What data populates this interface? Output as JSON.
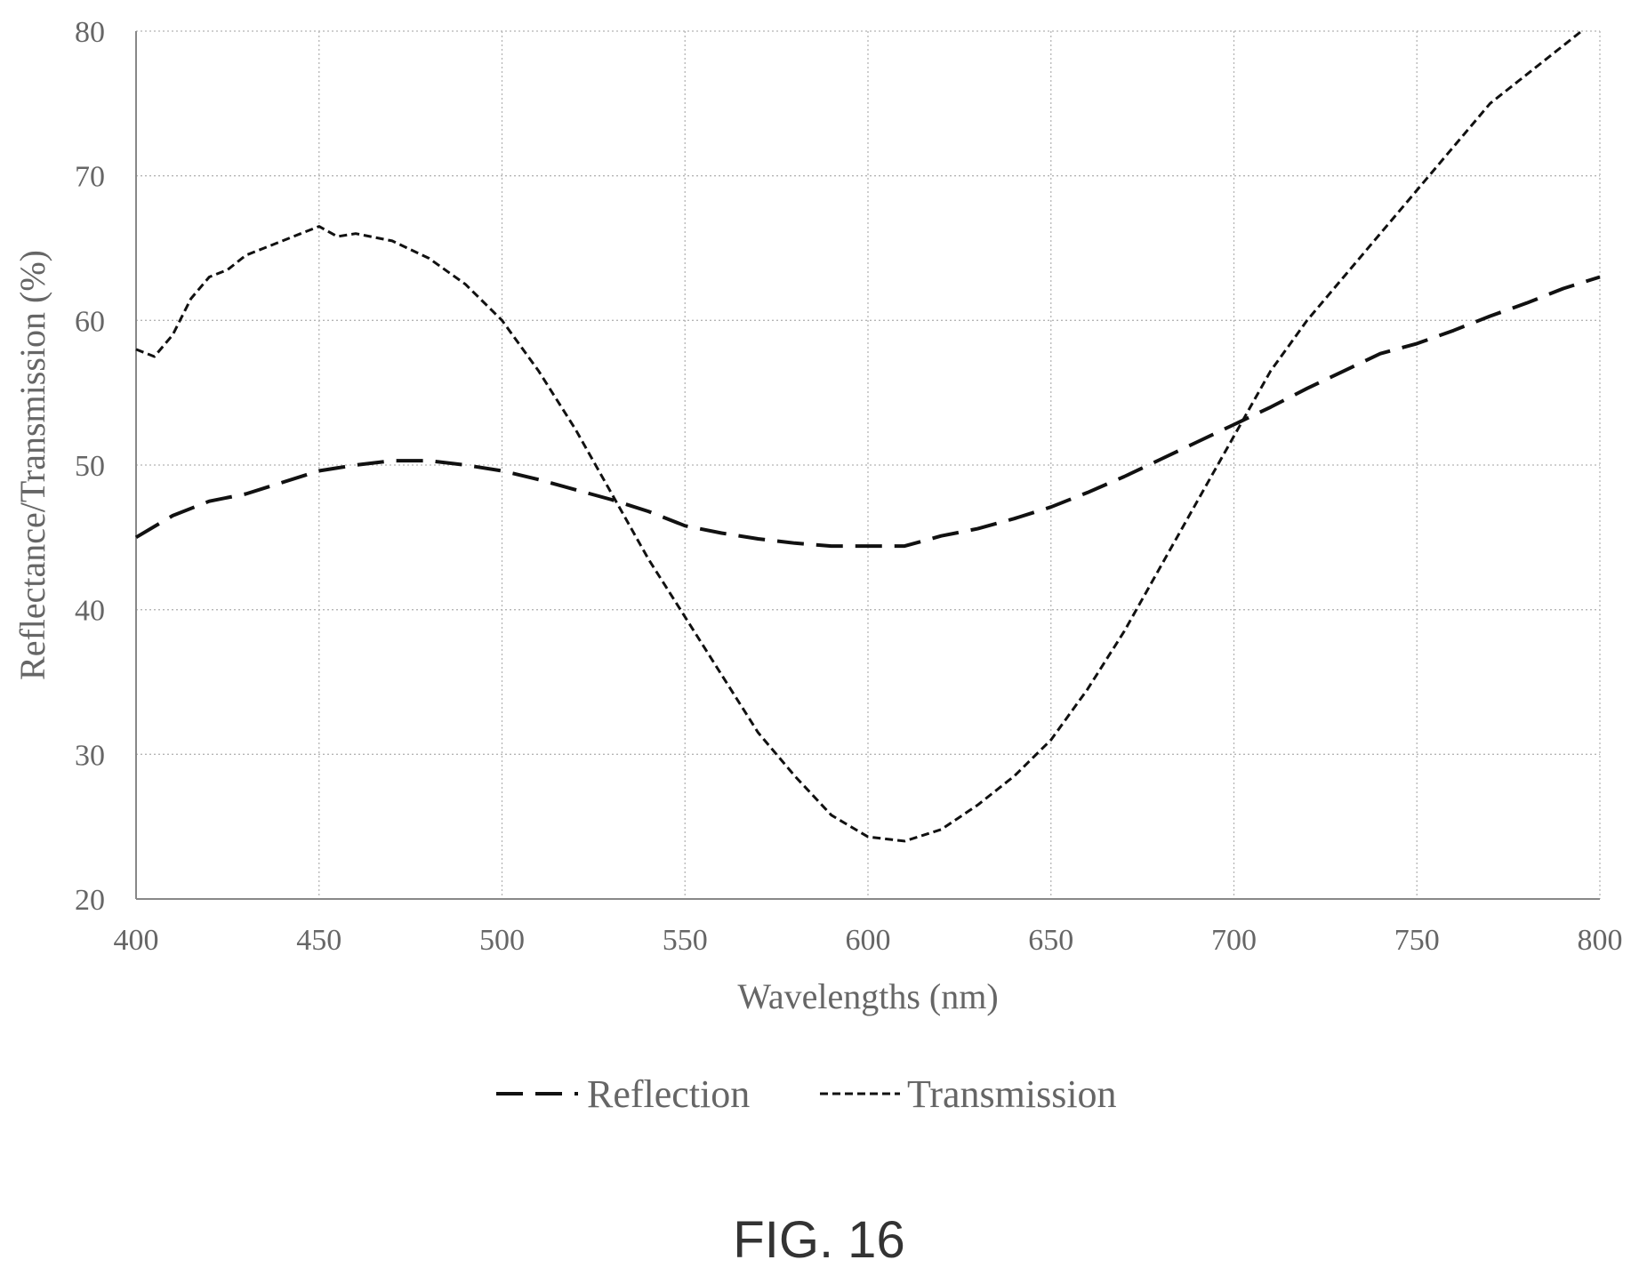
{
  "figure_label": "FIG. 16",
  "chart_data": {
    "type": "line",
    "title": "",
    "xlabel": "Wavelengths (nm)",
    "ylabel": "Reflectance/Transmission (%)",
    "xlim": [
      400,
      800
    ],
    "ylim": [
      20,
      80
    ],
    "x_ticks": [
      400,
      450,
      500,
      550,
      600,
      650,
      700,
      750,
      800
    ],
    "y_ticks": [
      20,
      30,
      40,
      50,
      60,
      70,
      80
    ],
    "grid": true,
    "legend_position": "bottom",
    "series": [
      {
        "name": "Reflection",
        "line_style": "long-dash",
        "color": "#111111",
        "x": [
          400,
          410,
          420,
          430,
          440,
          450,
          460,
          470,
          480,
          490,
          500,
          510,
          520,
          530,
          540,
          550,
          560,
          570,
          580,
          590,
          600,
          610,
          620,
          630,
          640,
          650,
          660,
          670,
          680,
          690,
          700,
          710,
          720,
          730,
          740,
          750,
          760,
          770,
          780,
          790,
          800
        ],
        "y": [
          45.0,
          46.5,
          47.5,
          48.0,
          48.8,
          49.6,
          50.0,
          50.3,
          50.3,
          50.0,
          49.6,
          49.0,
          48.3,
          47.6,
          46.8,
          45.8,
          45.3,
          44.9,
          44.6,
          44.4,
          44.4,
          44.4,
          45.1,
          45.6,
          46.3,
          47.1,
          48.1,
          49.2,
          50.4,
          51.6,
          52.8,
          54.0,
          55.3,
          56.5,
          57.7,
          58.4,
          59.3,
          60.3,
          61.2,
          62.2,
          63.0
        ]
      },
      {
        "name": "Transmission",
        "line_style": "short-dash",
        "color": "#111111",
        "x": [
          400,
          405,
          410,
          415,
          420,
          425,
          430,
          435,
          440,
          445,
          450,
          455,
          460,
          470,
          480,
          490,
          500,
          510,
          520,
          530,
          540,
          550,
          560,
          570,
          580,
          590,
          600,
          610,
          620,
          630,
          640,
          650,
          660,
          670,
          680,
          690,
          700,
          710,
          720,
          730,
          740,
          750,
          760,
          770,
          780,
          790,
          800
        ],
        "y": [
          58.0,
          57.5,
          59.0,
          61.5,
          63.0,
          63.5,
          64.5,
          65.0,
          65.5,
          66.0,
          66.5,
          65.8,
          66.0,
          65.5,
          64.3,
          62.5,
          60.0,
          56.5,
          52.5,
          48.0,
          43.5,
          39.5,
          35.5,
          31.5,
          28.5,
          25.8,
          24.3,
          24.0,
          24.8,
          26.5,
          28.5,
          31.0,
          34.5,
          38.5,
          43.0,
          47.5,
          52.0,
          56.5,
          60.0,
          63.0,
          66.0,
          69.0,
          72.0,
          75.0,
          77.0,
          79.0,
          81.0
        ]
      }
    ]
  }
}
